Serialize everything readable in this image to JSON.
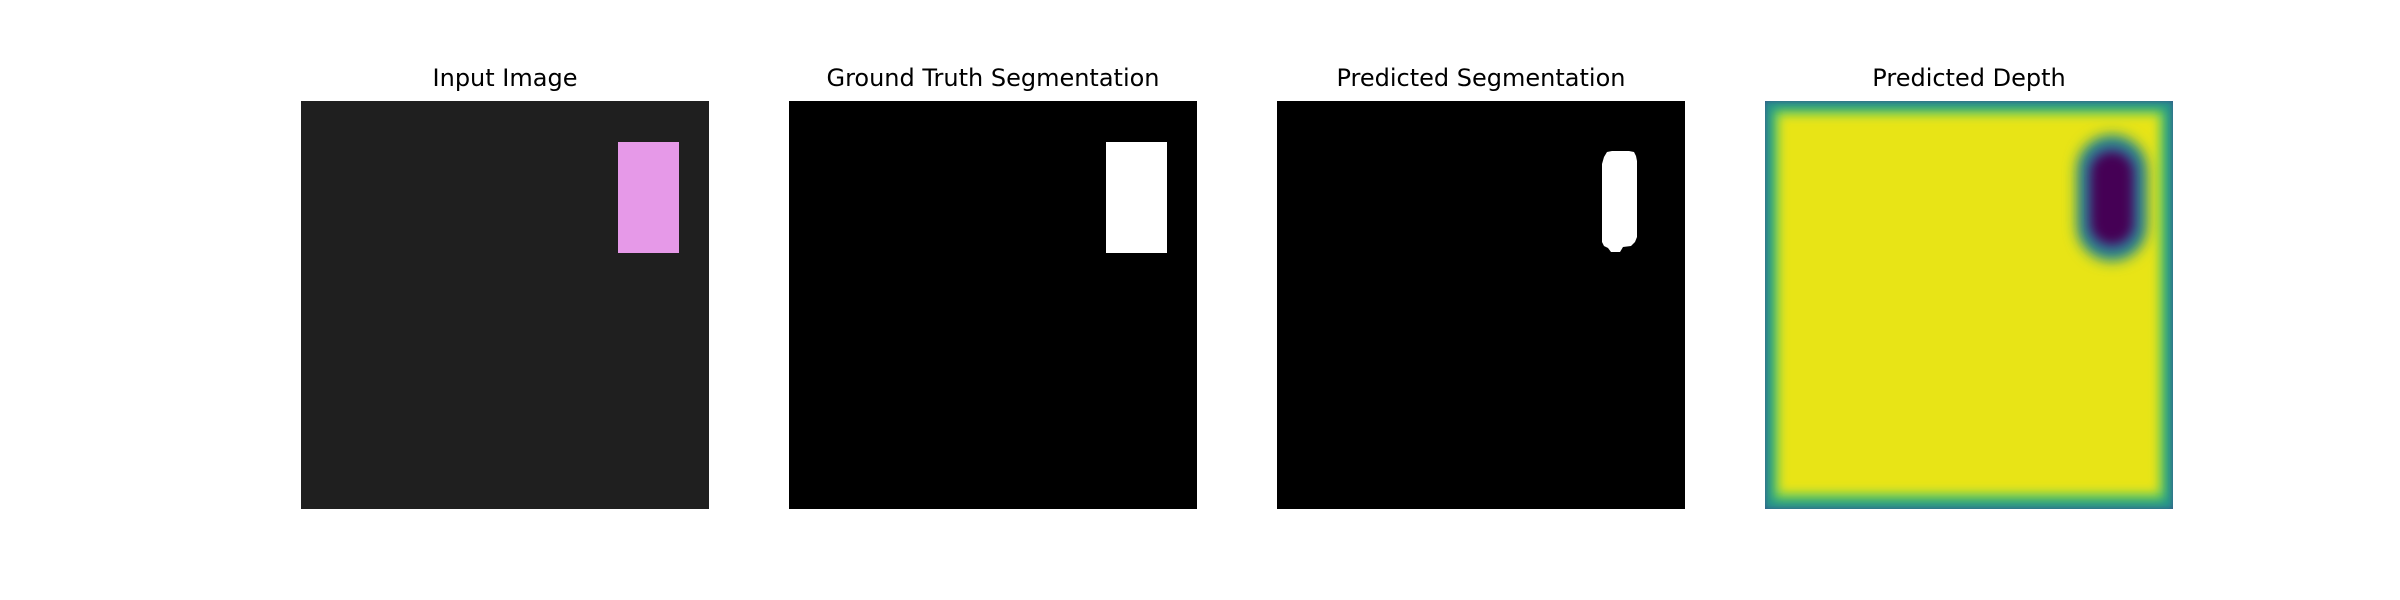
{
  "figure": {
    "panels": [
      {
        "title": "Input Image",
        "content": "pink rectangle on dark gray background",
        "colors": {
          "background": "#1f1f1f",
          "object": "#e699e8"
        }
      },
      {
        "title": "Ground Truth Segmentation",
        "content": "white rectangle mask on black",
        "colors": {
          "background": "#000000",
          "object": "#ffffff"
        }
      },
      {
        "title": "Predicted Segmentation",
        "content": "white rounded blob mask on black",
        "colors": {
          "background": "#000000",
          "object": "#ffffff"
        }
      },
      {
        "title": "Predicted Depth",
        "content": "viridis depth map: yellow field, dark purple rounded blob, teal border",
        "colors": {
          "field": "#e8e419",
          "blob": "#440154",
          "border": "#21918c",
          "edge": "#3b528b"
        }
      }
    ]
  }
}
